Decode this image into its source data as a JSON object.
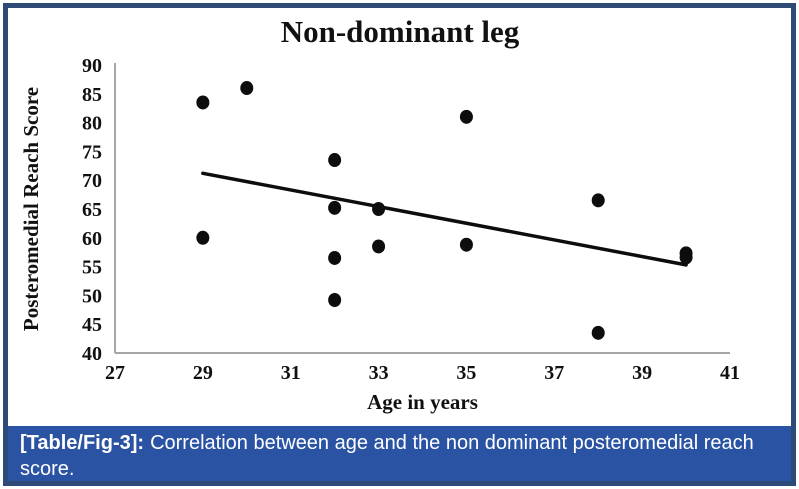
{
  "figure": {
    "caption_label": "[Table/Fig-3]:",
    "caption_text": "Correlation between age and the non dominant posteromedial reach score.",
    "caption_bg": "#2b53a4",
    "caption_text_color": "#ffffff",
    "frame_color": "#2d4b76"
  },
  "chart_data": {
    "type": "scatter",
    "title": "Non-dominant leg",
    "xlabel": "Age in years",
    "ylabel": "Posteromedial Reach Score",
    "xlim": [
      27,
      41
    ],
    "ylim": [
      40,
      90
    ],
    "xticks": [
      27,
      29,
      31,
      33,
      35,
      37,
      39,
      41
    ],
    "yticks": [
      40,
      45,
      50,
      55,
      60,
      65,
      70,
      75,
      80,
      85,
      90
    ],
    "grid": false,
    "legend": "none",
    "marker_color": "#0d0d0d",
    "axis_color": "#a6a6a6",
    "points": [
      {
        "x": 29,
        "y": 83.5
      },
      {
        "x": 29,
        "y": 60
      },
      {
        "x": 30,
        "y": 86
      },
      {
        "x": 32,
        "y": 73.5
      },
      {
        "x": 32,
        "y": 65.2
      },
      {
        "x": 32,
        "y": 56.5
      },
      {
        "x": 32,
        "y": 49.2
      },
      {
        "x": 33,
        "y": 65
      },
      {
        "x": 33,
        "y": 58.5
      },
      {
        "x": 35,
        "y": 81
      },
      {
        "x": 35,
        "y": 58.8
      },
      {
        "x": 38,
        "y": 66.5
      },
      {
        "x": 38,
        "y": 43.5
      },
      {
        "x": 40,
        "y": 57.3
      },
      {
        "x": 40,
        "y": 56.6
      }
    ],
    "trendline": {
      "x1": 29,
      "y1": 71.2,
      "x2": 40,
      "y2": 55.3
    }
  }
}
